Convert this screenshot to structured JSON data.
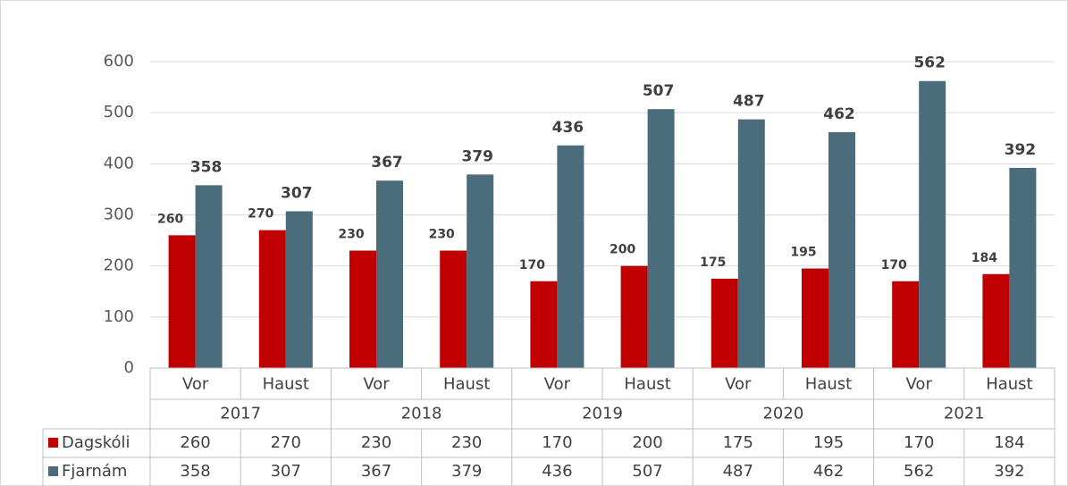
{
  "chart_data": {
    "type": "bar",
    "categories": [
      "Vor",
      "Haust",
      "Vor",
      "Haust",
      "Vor",
      "Haust",
      "Vor",
      "Haust",
      "Vor",
      "Haust"
    ],
    "category_groups": [
      "2017",
      "2018",
      "2019",
      "2020",
      "2021"
    ],
    "series": [
      {
        "name": "Dagskóli",
        "color": "#c00000",
        "values": [
          260,
          270,
          230,
          230,
          170,
          200,
          175,
          195,
          170,
          184
        ]
      },
      {
        "name": "Fjarnám",
        "color": "#4b6c7a",
        "values": [
          358,
          307,
          367,
          379,
          436,
          507,
          487,
          462,
          562,
          392
        ]
      }
    ],
    "ylim": [
      0,
      600
    ],
    "yticks": [
      0,
      100,
      200,
      300,
      400,
      500,
      600
    ],
    "grid": true,
    "data_table": true
  }
}
